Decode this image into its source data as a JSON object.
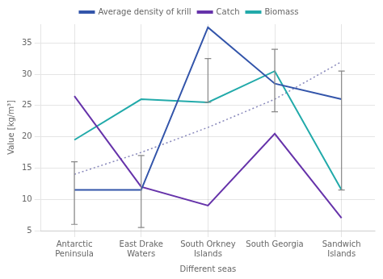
{
  "chart_data": {
    "type": "line",
    "categories": [
      "Antarctic\nPeninsula",
      "East Drake\nWaters",
      "South Orkney\nIslands",
      "South Georgia",
      "Sandwich\nIslands"
    ],
    "series": [
      {
        "name": "Average density of krill",
        "color": "#3355aa",
        "values": [
          11.5,
          11.5,
          37.5,
          28.5,
          26.0
        ],
        "error_lower": [
          5.5,
          6.0,
          0,
          0,
          0
        ],
        "error_upper": [
          4.5,
          5.5,
          0,
          0,
          0
        ]
      },
      {
        "name": "Catch",
        "color": "#6633aa",
        "values": [
          26.5,
          12.0,
          9.0,
          20.5,
          7.0
        ]
      },
      {
        "name": "Biomass",
        "color": "#22aaaa",
        "values": [
          19.5,
          26.0,
          25.5,
          30.5,
          11.5
        ],
        "error_lower": [
          0,
          0,
          0,
          6.5,
          0
        ],
        "error_upper": [
          0,
          0,
          7.0,
          3.5,
          19.0
        ]
      },
      {
        "color": "#8888bb",
        "values": [
          14.0,
          17.5,
          21.5,
          26.0,
          32.0
        ],
        "line_style": "dotted"
      }
    ],
    "xlabel": "Different seas",
    "ylabel": "Value [kg/m³]",
    "ylim": [
      5,
      38
    ],
    "yticks": [
      5,
      10,
      15,
      20,
      25,
      30,
      35
    ],
    "grid": true,
    "legend": "top"
  }
}
